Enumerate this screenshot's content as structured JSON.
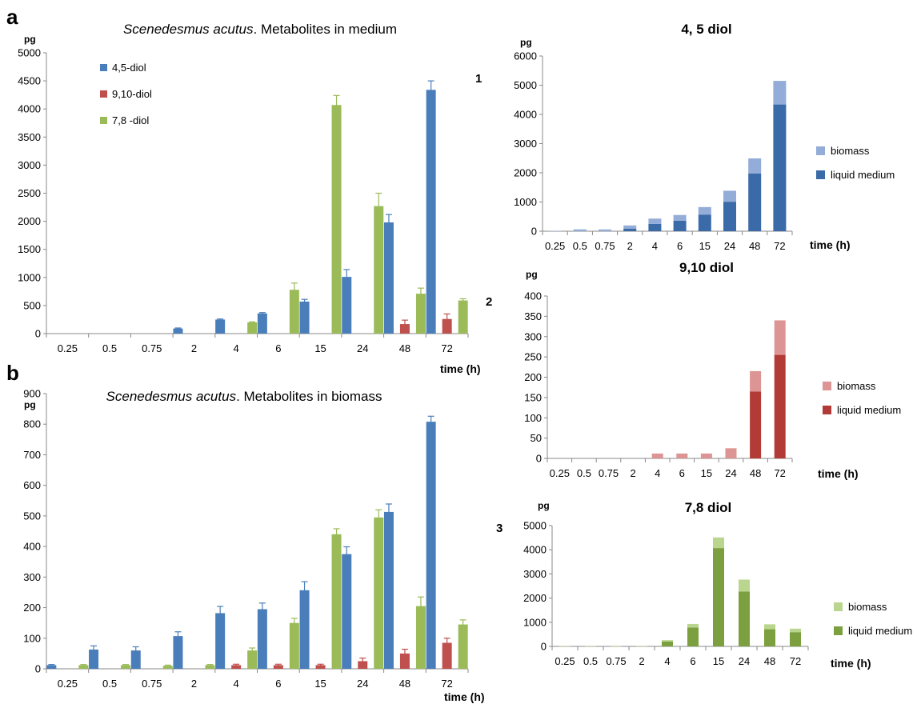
{
  "figure": {
    "panel_a_letter": "a",
    "panel_b_letter": "b",
    "side_labels": [
      "1",
      "2",
      "3"
    ]
  },
  "chart_data": [
    {
      "id": "medium",
      "type": "bar",
      "title_italic": "Scenedesmus acutus",
      "title_rest": ". Metabolites in medium",
      "ylabel": "pg",
      "xlabel": "time (h)",
      "ylim": [
        0,
        5000
      ],
      "ytick_step": 500,
      "legend_position": "top-left",
      "categories": [
        "0.25",
        "0.5",
        "0.75",
        "2",
        "4",
        "6",
        "15",
        "24",
        "48",
        "72"
      ],
      "series": [
        {
          "name": "4,5-diol",
          "color": "#4a7ebb",
          "values": [
            0,
            0,
            0,
            90,
            250,
            360,
            570,
            1010,
            1980,
            4340
          ],
          "errors": [
            0,
            0,
            0,
            10,
            10,
            15,
            40,
            130,
            140,
            160
          ]
        },
        {
          "name": "9,10-diol",
          "color": "#c0504d",
          "values": [
            0,
            0,
            0,
            0,
            0,
            0,
            0,
            0,
            170,
            260
          ],
          "errors": [
            0,
            0,
            0,
            0,
            0,
            0,
            0,
            0,
            70,
            90
          ]
        },
        {
          "name": "7,8 -diol",
          "color": "#9bbb59",
          "values": [
            0,
            0,
            0,
            0,
            200,
            780,
            4070,
            2270,
            710,
            590
          ],
          "errors": [
            0,
            0,
            0,
            0,
            10,
            120,
            170,
            230,
            100,
            30
          ]
        }
      ]
    },
    {
      "id": "biomass",
      "type": "bar",
      "title_italic": "Scenedesmus acutus",
      "title_rest": ". Metabolites in biomass",
      "ylabel": "pg",
      "xlabel": "time (h)",
      "ylim": [
        0,
        900
      ],
      "ytick_step": 100,
      "categories": [
        "0.25",
        "0.5",
        "0.75",
        "2",
        "4",
        "6",
        "15",
        "24",
        "48",
        "72"
      ],
      "series": [
        {
          "color": "#4a7ebb",
          "values": [
            12,
            63,
            60,
            107,
            182,
            195,
            257,
            375,
            513,
            808
          ],
          "errors": [
            2,
            12,
            12,
            14,
            22,
            20,
            28,
            24,
            26,
            18
          ]
        },
        {
          "color": "#c0504d",
          "values": [
            0,
            0,
            0,
            0,
            12,
            12,
            12,
            25,
            50,
            85
          ],
          "errors": [
            0,
            0,
            0,
            0,
            3,
            3,
            3,
            10,
            14,
            15
          ]
        },
        {
          "color": "#9bbb59",
          "values": [
            12,
            12,
            10,
            12,
            60,
            150,
            440,
            495,
            205,
            145
          ],
          "errors": [
            2,
            2,
            2,
            2,
            8,
            15,
            18,
            25,
            30,
            15
          ]
        }
      ]
    },
    {
      "id": "diol45",
      "type": "bar",
      "stacked": true,
      "title": "4, 5 diol",
      "ylabel": "pg",
      "xlabel": "time (h)",
      "ylim": [
        0,
        6000
      ],
      "ytick_step": 1000,
      "legend_position": "right",
      "categories": [
        "0.25",
        "0.5",
        "0.75",
        "2",
        "4",
        "6",
        "15",
        "24",
        "48",
        "72"
      ],
      "series": [
        {
          "name": "liquid medium",
          "color": "#3b6aa8",
          "values": [
            0,
            0,
            0,
            90,
            250,
            360,
            570,
            1010,
            1980,
            4340
          ]
        },
        {
          "name": "biomass",
          "color": "#93acd8",
          "values": [
            12,
            63,
            60,
            107,
            182,
            195,
            257,
            375,
            513,
            808
          ]
        }
      ]
    },
    {
      "id": "diol910",
      "type": "bar",
      "stacked": true,
      "title": "9,10 diol",
      "ylabel": "pg",
      "xlabel": "time (h)",
      "ylim": [
        0,
        400
      ],
      "ytick_step": 50,
      "legend_position": "right",
      "categories": [
        "0.25",
        "0.5",
        "0.75",
        "2",
        "4",
        "6",
        "15",
        "24",
        "48",
        "72"
      ],
      "series": [
        {
          "name": "liquid medium",
          "color": "#b23a37",
          "values": [
            0,
            0,
            0,
            0,
            0,
            0,
            0,
            0,
            165,
            255
          ]
        },
        {
          "name": "biomass",
          "color": "#dc9594",
          "values": [
            0,
            0,
            0,
            0,
            12,
            12,
            12,
            25,
            50,
            85
          ]
        }
      ]
    },
    {
      "id": "diol78",
      "type": "bar",
      "stacked": true,
      "title": "7,8 diol",
      "ylabel": "pg",
      "xlabel": "time (h)",
      "ylim": [
        0,
        5000
      ],
      "ytick_step": 1000,
      "legend_position": "right",
      "categories": [
        "0.25",
        "0.5",
        "0.75",
        "2",
        "4",
        "6",
        "15",
        "24",
        "48",
        "72"
      ],
      "series": [
        {
          "name": "liquid medium",
          "color": "#7ca03f",
          "values": [
            0,
            0,
            0,
            0,
            200,
            780,
            4070,
            2270,
            710,
            590
          ]
        },
        {
          "name": "biomass",
          "color": "#bad58e",
          "values": [
            12,
            12,
            10,
            12,
            60,
            150,
            440,
            495,
            205,
            145
          ]
        }
      ]
    }
  ]
}
